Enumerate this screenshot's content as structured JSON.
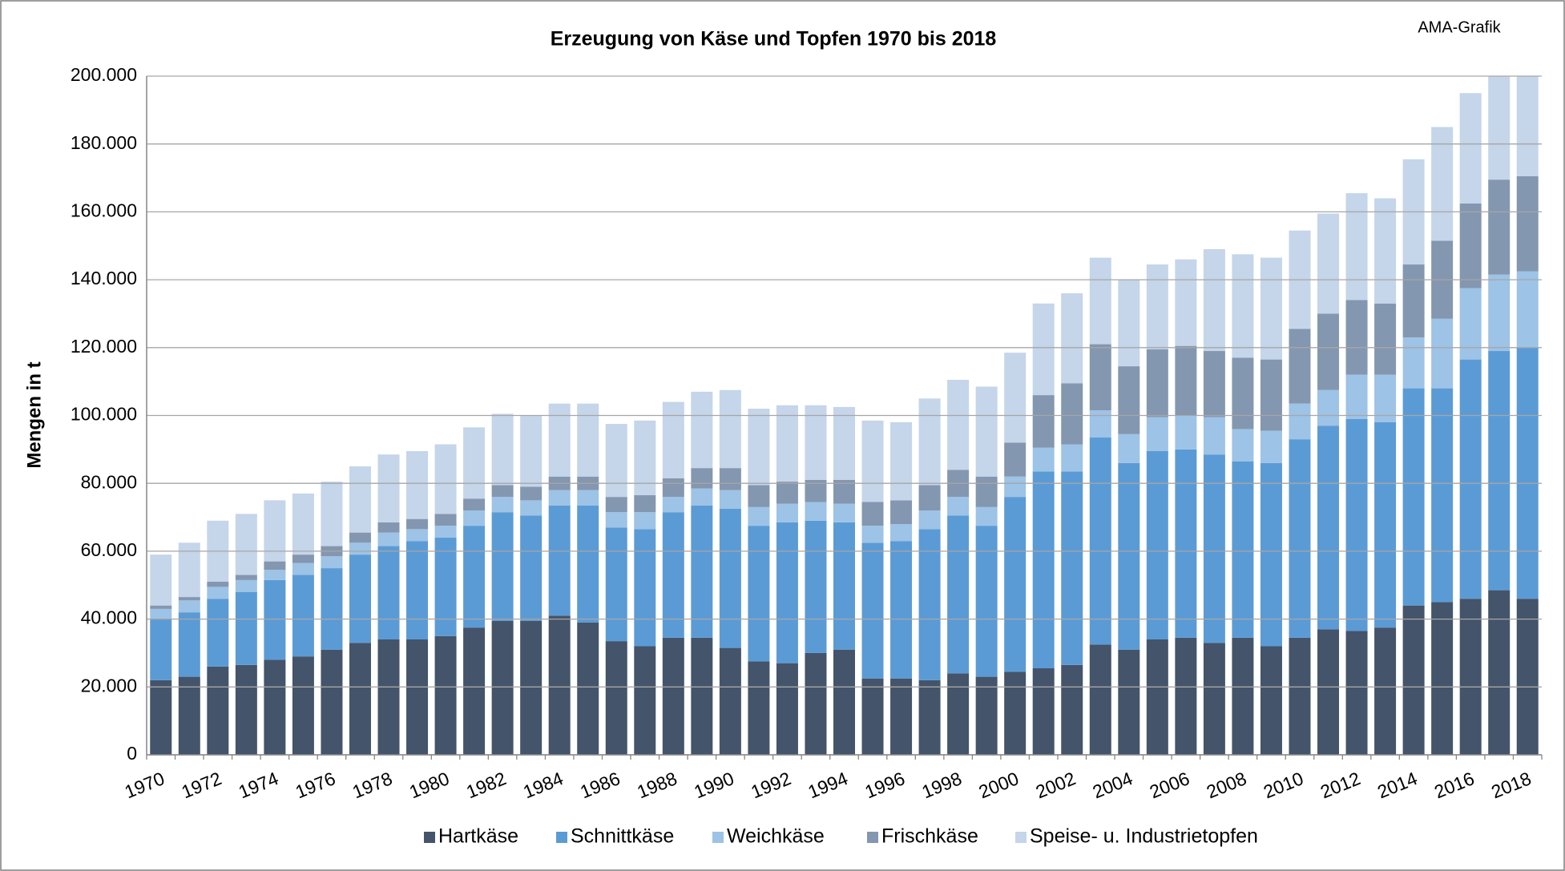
{
  "chart_data": {
    "type": "stacked_bar",
    "title": "Erzeugung von Käse und Topfen 1970 bis 2018",
    "annotation": "AMA-Grafik",
    "y_label": "Mengen in t",
    "categories": [
      "1970",
      null,
      "1972",
      null,
      "1974",
      null,
      "1976",
      null,
      "1978",
      null,
      "1980",
      null,
      "1982",
      null,
      "1984",
      null,
      "1986",
      null,
      "1988",
      null,
      "1990",
      null,
      "1992",
      null,
      "1994",
      null,
      "1996",
      null,
      "1998",
      null,
      "2000",
      null,
      "2002",
      null,
      "2004",
      null,
      "2006",
      null,
      "2008",
      null,
      "2010",
      null,
      "2012",
      null,
      "2014",
      null,
      "2016",
      null,
      "2018"
    ],
    "series": [
      {
        "name": "Hartkäse",
        "color": "#44546a",
        "values": [
          22000,
          23000,
          26000,
          26500,
          28000,
          29000,
          31000,
          33000,
          34000,
          34000,
          35000,
          37500,
          39500,
          39500,
          41000,
          39000,
          33500,
          32000,
          34500,
          34500,
          31500,
          27500,
          27000,
          30000,
          31000,
          22500,
          22500,
          22000,
          24000,
          23000,
          24500,
          25500,
          26500,
          32500,
          31000,
          34000,
          34500,
          33000,
          34500,
          32000,
          34500,
          37000,
          36500,
          37500,
          44000,
          45000,
          46000,
          48500,
          46000
        ]
      },
      {
        "name": "Schnittkäse",
        "color": "#5b9bd5",
        "values": [
          18000,
          19000,
          20000,
          21500,
          23500,
          24000,
          24000,
          26000,
          27500,
          29000,
          29000,
          30000,
          32000,
          31000,
          32500,
          34500,
          33500,
          34500,
          37000,
          39000,
          41000,
          40000,
          41500,
          39000,
          37500,
          40000,
          40500,
          44500,
          46500,
          44500,
          51500,
          58000,
          57000,
          61000,
          55000,
          55500,
          55500,
          55500,
          52000,
          54000,
          58500,
          60000,
          62500,
          60500,
          64000,
          63000,
          70500,
          70500,
          74000
        ]
      },
      {
        "name": "Weichkäse",
        "color": "#9dc3e6",
        "values": [
          3000,
          3500,
          3500,
          3500,
          3000,
          3500,
          3500,
          3500,
          4000,
          3500,
          3500,
          4500,
          4500,
          4500,
          4500,
          4500,
          4500,
          5000,
          4500,
          5000,
          5500,
          5500,
          5500,
          5500,
          5500,
          5000,
          5000,
          5500,
          5500,
          5500,
          6000,
          7000,
          8000,
          8000,
          8500,
          10000,
          10000,
          11000,
          9500,
          9500,
          10500,
          10500,
          13000,
          14000,
          15000,
          20500,
          21000,
          22500,
          22500
        ]
      },
      {
        "name": "Frischkäse",
        "color": "#8497b0",
        "values": [
          1000,
          1000,
          1500,
          1500,
          2500,
          2500,
          3000,
          3000,
          3000,
          3000,
          3500,
          3500,
          3500,
          4000,
          4000,
          4000,
          4500,
          5000,
          5500,
          6000,
          6500,
          6500,
          6500,
          6500,
          7000,
          7000,
          7000,
          7500,
          8000,
          9000,
          10000,
          15500,
          18000,
          19500,
          20000,
          20000,
          20500,
          19500,
          21000,
          21000,
          22000,
          22500,
          22000,
          21000,
          21500,
          23000,
          25000,
          28000,
          28000
        ]
      },
      {
        "name": "Speise- u. Industrietopfen",
        "color": "#c5d5ea",
        "values": [
          15000,
          16000,
          18000,
          18000,
          18000,
          18000,
          19000,
          19500,
          20000,
          20000,
          20500,
          21000,
          21000,
          21000,
          21500,
          21500,
          21500,
          22000,
          22500,
          22500,
          23000,
          22500,
          22500,
          22000,
          21500,
          24000,
          23000,
          25500,
          26500,
          26500,
          26500,
          27000,
          26500,
          25500,
          25500,
          25000,
          25500,
          30000,
          30500,
          30000,
          29000,
          29500,
          31500,
          31000,
          31000,
          33500,
          32500,
          33500,
          33500
        ]
      }
    ],
    "ylim": [
      0,
      200000
    ],
    "yticks": [
      0,
      {
        "value": 20000,
        "label": "20.000"
      },
      {
        "value": 40000,
        "label": "40.000"
      },
      {
        "value": 60000,
        "label": "60.000"
      },
      {
        "value": 80000,
        "label": "80.000"
      },
      {
        "value": 100000,
        "label": "100.000"
      },
      {
        "value": 120000,
        "label": "120.000"
      },
      {
        "value": 140000,
        "label": "140.000"
      },
      {
        "value": 160000,
        "label": "160.000"
      },
      {
        "value": 180000,
        "label": "180.000"
      },
      {
        "value": 200000,
        "label": "200.000"
      }
    ],
    "grid": true,
    "legend": "bottom"
  }
}
